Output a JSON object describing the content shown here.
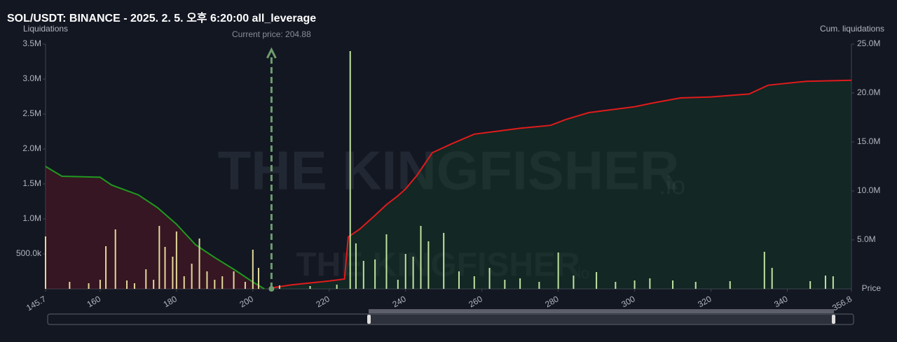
{
  "chart_data": {
    "type": "liquidation",
    "title": "SOL/USDT: BINANCE - 2025. 2. 5. 오후 6:20:00 all_leverage",
    "y_label": "Liquidations",
    "y2_label": "Cum. liquidations",
    "x_label": "Price",
    "watermark": "THE KINGFISHER",
    "watermark_suffix": ".io",
    "annotation": {
      "label": "Current price: 204.88",
      "x": 204.88,
      "color": "#6e9e6e"
    },
    "xlim": [
      145.7,
      356.8
    ],
    "xticks": [
      145.7,
      160,
      180,
      200,
      220,
      240,
      260,
      280,
      300,
      320,
      340,
      356.8
    ],
    "ylim": [
      0,
      3500000
    ],
    "yticks": [
      {
        "value": 500000,
        "label": "500.0k"
      },
      {
        "value": 1000000,
        "label": "1.0M"
      },
      {
        "value": 1500000,
        "label": "1.5M"
      },
      {
        "value": 2000000,
        "label": "2.0M"
      },
      {
        "value": 2500000,
        "label": "2.5M"
      },
      {
        "value": 3000000,
        "label": "3.0M"
      },
      {
        "value": 3500000,
        "label": "3.5M"
      }
    ],
    "y2lim": [
      0,
      25000000
    ],
    "y2ticks": [
      {
        "value": 5000000,
        "label": "5.0M"
      },
      {
        "value": 10000000,
        "label": "10.0M"
      },
      {
        "value": 15000000,
        "label": "15.0M"
      },
      {
        "value": 20000000,
        "label": "20.0M"
      },
      {
        "value": 25000000,
        "label": "25.0M"
      }
    ],
    "series": [
      {
        "type": "bar",
        "color": "#e3d99a",
        "x": [
          145.7,
          152,
          157,
          160,
          161.5,
          164,
          167,
          169,
          172,
          174,
          175.5,
          177,
          179,
          180,
          182,
          184,
          186,
          188,
          190,
          192,
          195,
          198,
          200,
          201.5
        ],
        "values": [
          750000,
          100000,
          80000,
          130000,
          610000,
          850000,
          120000,
          80000,
          280000,
          130000,
          900000,
          600000,
          460000,
          820000,
          180000,
          360000,
          720000,
          250000,
          130000,
          180000,
          250000,
          100000,
          560000,
          300000
        ]
      },
      {
        "type": "bar",
        "color": "#bfe3a0",
        "x": [
          207,
          215,
          222,
          225.5,
          227,
          229,
          232,
          235,
          238,
          240,
          242,
          244,
          246,
          250,
          254,
          258,
          262,
          266,
          270,
          275,
          280,
          284,
          290,
          295,
          300,
          304,
          310,
          316,
          325,
          334,
          336,
          346,
          350,
          352
        ],
        "values": [
          50000,
          40000,
          60000,
          3400000,
          650000,
          400000,
          420000,
          780000,
          130000,
          500000,
          460000,
          900000,
          680000,
          800000,
          250000,
          180000,
          300000,
          130000,
          150000,
          100000,
          520000,
          190000,
          240000,
          100000,
          120000,
          150000,
          120000,
          100000,
          110000,
          530000,
          300000,
          110000,
          190000,
          180000
        ]
      },
      {
        "type": "area",
        "axis": "y2",
        "color": "#1f9a1f",
        "fill": "rgba(110,20,35,0.38)",
        "x": [
          145.7,
          150,
          160,
          163,
          170,
          175,
          180,
          185,
          190,
          195,
          200,
          203
        ],
        "values": [
          12500000,
          11500000,
          11400000,
          10600000,
          9600000,
          8300000,
          6600000,
          4500000,
          3200000,
          2000000,
          700000,
          0
        ]
      },
      {
        "type": "area",
        "axis": "y2",
        "color": "#e01b1b",
        "fill": "rgba(20,70,40,0.35)",
        "x": [
          205,
          210,
          220,
          224,
          225,
          228,
          232,
          235,
          238,
          240,
          243,
          247,
          252,
          258,
          264,
          270,
          278,
          282,
          288,
          300,
          305,
          312,
          320,
          330,
          335,
          345,
          356.8
        ],
        "values": [
          100000,
          400000,
          800000,
          1000000,
          5300000,
          6100000,
          7500000,
          8600000,
          9500000,
          10200000,
          11600000,
          13900000,
          14800000,
          15800000,
          16100000,
          16400000,
          16700000,
          17300000,
          18000000,
          18600000,
          19000000,
          19500000,
          19600000,
          19900000,
          20800000,
          21200000,
          21300000
        ]
      }
    ]
  }
}
